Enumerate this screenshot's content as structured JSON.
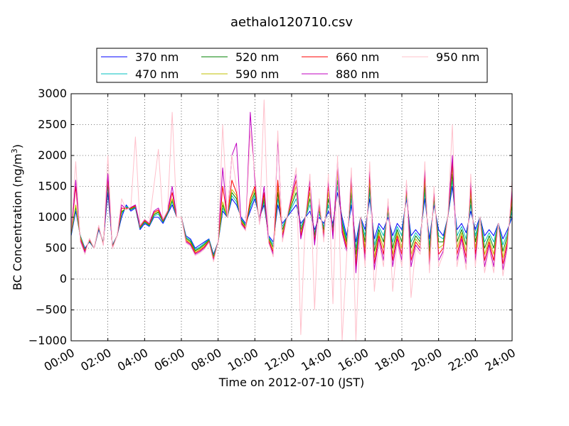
{
  "chart_data": {
    "type": "line",
    "title": "aethalo120710.csv",
    "xlabel": "Time on 2012-07-10 (JST)",
    "ylabel": "BC Concentration (ng/m",
    "ylabel_sup": "3",
    "ylabel_end": ")",
    "xlim": [
      0,
      24
    ],
    "ylim": [
      -1000,
      3000
    ],
    "x_ticks": [
      0,
      2,
      4,
      6,
      8,
      10,
      12,
      14,
      16,
      18,
      20,
      22,
      24
    ],
    "x_tick_labels": [
      "00:00",
      "02:00",
      "04:00",
      "06:00",
      "08:00",
      "10:00",
      "12:00",
      "14:00",
      "16:00",
      "18:00",
      "20:00",
      "22:00",
      "24:00"
    ],
    "y_ticks": [
      -1000,
      -500,
      0,
      500,
      1000,
      1500,
      2000,
      2500,
      3000
    ],
    "y_tick_labels": [
      "−1000",
      "−500",
      "0",
      "500",
      "1000",
      "1500",
      "2000",
      "2500",
      "3000"
    ],
    "grid": true,
    "legend_position": "top-center",
    "x": [
      0.0,
      0.25,
      0.5,
      0.75,
      1.0,
      1.25,
      1.5,
      1.75,
      2.0,
      2.25,
      2.5,
      2.75,
      3.0,
      3.25,
      3.5,
      3.75,
      4.0,
      4.25,
      4.5,
      4.75,
      5.0,
      5.25,
      5.5,
      5.75,
      6.0,
      6.25,
      6.5,
      6.75,
      7.0,
      7.25,
      7.5,
      7.75,
      8.0,
      8.25,
      8.5,
      8.75,
      9.0,
      9.25,
      9.5,
      9.75,
      10.0,
      10.25,
      10.5,
      10.75,
      11.0,
      11.25,
      11.5,
      11.75,
      12.0,
      12.25,
      12.5,
      12.75,
      13.0,
      13.25,
      13.5,
      13.75,
      14.0,
      14.25,
      14.5,
      14.75,
      15.0,
      15.25,
      15.5,
      15.75,
      16.0,
      16.25,
      16.5,
      16.75,
      17.0,
      17.25,
      17.5,
      17.75,
      18.0,
      18.25,
      18.5,
      18.75,
      19.0,
      19.25,
      19.5,
      19.75,
      20.0,
      20.25,
      20.5,
      20.75,
      21.0,
      21.25,
      21.5,
      21.75,
      22.0,
      22.25,
      22.5,
      22.75,
      23.0,
      23.25,
      23.5,
      23.75,
      24.0
    ],
    "series": [
      {
        "name": "370 nm",
        "color": "#0000ff",
        "values": [
          700,
          1100,
          700,
          500,
          600,
          500,
          800,
          600,
          1400,
          550,
          700,
          1000,
          1200,
          1100,
          1150,
          800,
          900,
          850,
          1000,
          1000,
          900,
          1050,
          1200,
          1000,
          1000,
          700,
          650,
          500,
          550,
          600,
          650,
          400,
          600,
          1100,
          1000,
          1300,
          1200,
          1000,
          900,
          1100,
          1300,
          1000,
          1200,
          700,
          600,
          1200,
          900,
          1000,
          1100,
          1200,
          900,
          1000,
          1100,
          800,
          1000,
          900,
          1100,
          900,
          1400,
          1000,
          700,
          1200,
          600,
          1000,
          800,
          1300,
          650,
          900,
          800,
          1000,
          700,
          900,
          800,
          1300,
          700,
          800,
          700,
          1300,
          650,
          1200,
          800,
          700,
          1000,
          1500,
          800,
          900,
          750,
          1100,
          800,
          1000,
          700,
          800,
          700,
          900,
          650,
          800,
          1000
        ]
      },
      {
        "name": "470 nm",
        "color": "#00bfbf",
        "values": [
          720,
          1150,
          700,
          480,
          610,
          500,
          820,
          590,
          1500,
          540,
          700,
          1050,
          1180,
          1120,
          1160,
          820,
          920,
          860,
          1020,
          1050,
          920,
          1060,
          1250,
          1000,
          1000,
          680,
          630,
          480,
          520,
          580,
          640,
          380,
          600,
          1150,
          1000,
          1350,
          1250,
          980,
          880,
          1150,
          1350,
          980,
          1250,
          680,
          560,
          1300,
          850,
          1000,
          1150,
          1300,
          850,
          1000,
          1200,
          750,
          1050,
          850,
          1200,
          850,
          1500,
          950,
          650,
          1300,
          500,
          1000,
          700,
          1400,
          550,
          850,
          700,
          1050,
          600,
          850,
          700,
          1350,
          600,
          750,
          650,
          1400,
          550,
          1250,
          700,
          650,
          1000,
          1600,
          700,
          850,
          650,
          1200,
          700,
          1000,
          600,
          750,
          600,
          900,
          550,
          750,
          1100
        ]
      },
      {
        "name": "520 nm",
        "color": "#008000",
        "values": [
          730,
          1180,
          690,
          470,
          620,
          500,
          830,
          580,
          1550,
          530,
          700,
          1080,
          1160,
          1130,
          1170,
          830,
          930,
          870,
          1040,
          1080,
          930,
          1070,
          1280,
          1000,
          1000,
          660,
          610,
          460,
          500,
          560,
          630,
          360,
          600,
          1200,
          1000,
          1400,
          1300,
          960,
          860,
          1200,
          1400,
          960,
          1300,
          660,
          520,
          1400,
          800,
          1000,
          1200,
          1400,
          800,
          1000,
          1300,
          700,
          1100,
          800,
          1300,
          800,
          1600,
          900,
          600,
          1400,
          400,
          1000,
          600,
          1500,
          450,
          800,
          600,
          1100,
          500,
          800,
          600,
          1400,
          500,
          700,
          600,
          1500,
          450,
          1300,
          600,
          600,
          1000,
          1700,
          600,
          800,
          550,
          1300,
          600,
          1000,
          500,
          700,
          500,
          900,
          450,
          700,
          1200
        ]
      },
      {
        "name": "590 nm",
        "color": "#bfbf00",
        "values": [
          740,
          1200,
          680,
          460,
          630,
          500,
          840,
          570,
          1600,
          520,
          700,
          1100,
          1150,
          1140,
          1180,
          840,
          940,
          880,
          1060,
          1100,
          940,
          1080,
          1300,
          1000,
          1000,
          640,
          590,
          440,
          480,
          540,
          620,
          340,
          600,
          1250,
          1000,
          1450,
          1350,
          940,
          840,
          1250,
          1450,
          940,
          1350,
          640,
          480,
          1500,
          750,
          1000,
          1250,
          1500,
          750,
          1000,
          1400,
          650,
          1150,
          750,
          1400,
          750,
          1700,
          850,
          550,
          1500,
          300,
          1000,
          500,
          1600,
          350,
          750,
          500,
          1150,
          400,
          750,
          500,
          1450,
          400,
          650,
          550,
          1600,
          350,
          1350,
          500,
          550,
          1000,
          1800,
          500,
          750,
          450,
          1400,
          500,
          1000,
          400,
          650,
          400,
          900,
          350,
          650,
          1300
        ]
      },
      {
        "name": "660 nm",
        "color": "#ff0000",
        "values": [
          750,
          1500,
          650,
          450,
          640,
          500,
          850,
          560,
          1650,
          510,
          700,
          1150,
          1140,
          1150,
          1190,
          850,
          950,
          890,
          1080,
          1120,
          950,
          1090,
          1400,
          1000,
          1000,
          620,
          570,
          420,
          460,
          520,
          610,
          320,
          600,
          1500,
          1000,
          1600,
          1400,
          920,
          820,
          1300,
          1500,
          920,
          1400,
          620,
          440,
          1600,
          700,
          1000,
          1300,
          1600,
          700,
          1000,
          1500,
          600,
          1200,
          700,
          1500,
          700,
          1800,
          800,
          500,
          1600,
          200,
          1000,
          400,
          1700,
          250,
          700,
          400,
          1200,
          300,
          700,
          400,
          1500,
          300,
          600,
          500,
          1700,
          250,
          1400,
          400,
          500,
          1000,
          1900,
          400,
          700,
          350,
          1500,
          400,
          1000,
          300,
          600,
          300,
          900,
          250,
          600,
          1400
        ]
      },
      {
        "name": "880 nm",
        "color": "#bf00bf",
        "values": [
          760,
          1600,
          630,
          430,
          650,
          500,
          860,
          550,
          1700,
          500,
          700,
          1200,
          1130,
          1160,
          1200,
          860,
          960,
          900,
          1100,
          1150,
          960,
          1100,
          1500,
          1000,
          1000,
          600,
          550,
          400,
          440,
          500,
          600,
          300,
          600,
          1800,
          1000,
          2000,
          2200,
          900,
          800,
          2700,
          1600,
          900,
          1500,
          600,
          400,
          2300,
          650,
          1000,
          1350,
          1700,
          650,
          1000,
          1600,
          550,
          1250,
          650,
          1600,
          650,
          1900,
          750,
          450,
          1700,
          100,
          1000,
          300,
          1800,
          150,
          650,
          300,
          1250,
          200,
          650,
          300,
          1550,
          200,
          550,
          450,
          1800,
          150,
          1450,
          300,
          450,
          1000,
          2000,
          300,
          650,
          250,
          1600,
          300,
          1000,
          200,
          550,
          200,
          900,
          150,
          550,
          1500
        ]
      },
      {
        "name": "950 nm",
        "color": "#ffc0cb",
        "values": [
          770,
          1900,
          600,
          400,
          660,
          500,
          870,
          540,
          2000,
          490,
          700,
          1300,
          1120,
          1170,
          2300,
          870,
          970,
          910,
          1500,
          2100,
          970,
          1110,
          2700,
          1000,
          1000,
          580,
          530,
          380,
          420,
          480,
          590,
          280,
          600,
          2500,
          1000,
          2000,
          1500,
          880,
          780,
          2400,
          1700,
          880,
          2900,
          580,
          360,
          2400,
          600,
          1000,
          1400,
          1800,
          -900,
          1000,
          1700,
          -500,
          1300,
          600,
          1700,
          -400,
          2000,
          -1000,
          400,
          1800,
          -1000,
          1000,
          200,
          1900,
          -200,
          600,
          200,
          1300,
          -200,
          600,
          200,
          1600,
          -300,
          500,
          400,
          1900,
          100,
          1500,
          200,
          400,
          1000,
          2500,
          200,
          600,
          150,
          1700,
          200,
          1000,
          100,
          500,
          100,
          900,
          50,
          500,
          1600
        ]
      }
    ]
  }
}
